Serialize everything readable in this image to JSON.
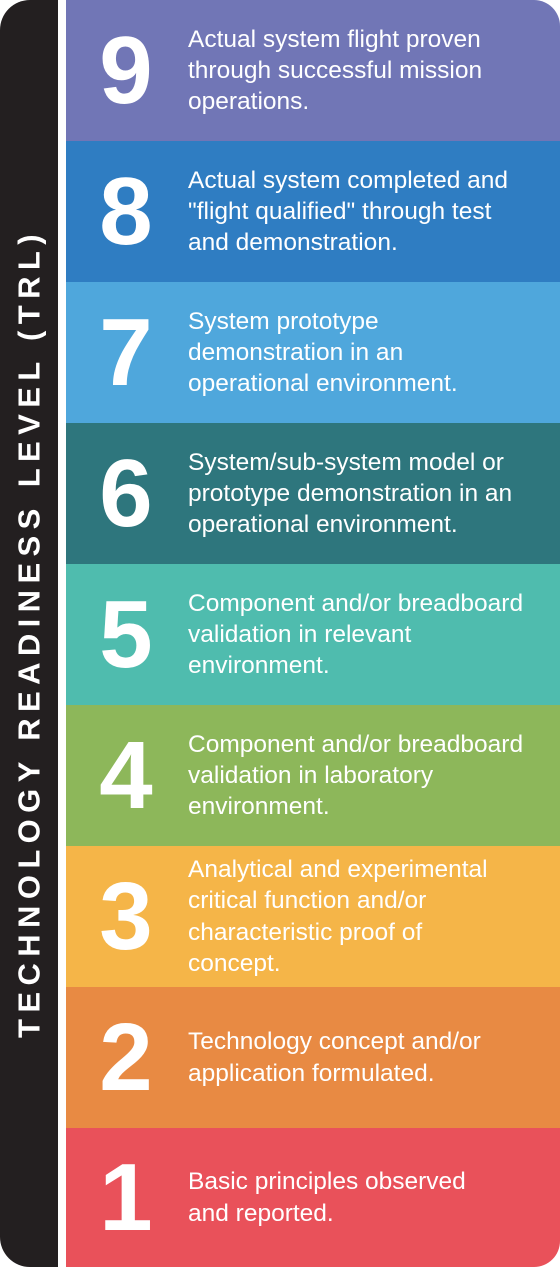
{
  "sidebar": {
    "title": "TECHNOLOGY READINESS LEVEL (TRL)",
    "background": "#231f20"
  },
  "levels": [
    {
      "number": "9",
      "lines": [
        "Actual system flight proven",
        "through successful mission",
        "operations."
      ],
      "color": "#7176b6"
    },
    {
      "number": "8",
      "lines": [
        "Actual system completed and",
        "\"flight qualified\" through test",
        "and demonstration."
      ],
      "color": "#2f7dc2"
    },
    {
      "number": "7",
      "lines": [
        "System prototype",
        "demonstration in an",
        "operational environment."
      ],
      "color": "#4fa7dc"
    },
    {
      "number": "6",
      "lines": [
        "System/sub-system model or",
        "prototype demonstration in an",
        "operational environment."
      ],
      "color": "#2e767d"
    },
    {
      "number": "5",
      "lines": [
        "Component and/or breadboard",
        "validation in relevant",
        "environment."
      ],
      "color": "#4fbcae"
    },
    {
      "number": "4",
      "lines": [
        "Component and/or breadboard",
        "validation in laboratory",
        "environment."
      ],
      "color": "#8db75a"
    },
    {
      "number": "3",
      "lines": [
        "Analytical and experimental",
        "critical function and/or",
        "characteristic proof of",
        "concept."
      ],
      "color": "#f5b548"
    },
    {
      "number": "2",
      "lines": [
        "Technology concept and/or",
        "application formulated."
      ],
      "color": "#e88a43"
    },
    {
      "number": "1",
      "lines": [
        "Basic principles observed",
        "and reported."
      ],
      "color": "#e9515a"
    }
  ]
}
